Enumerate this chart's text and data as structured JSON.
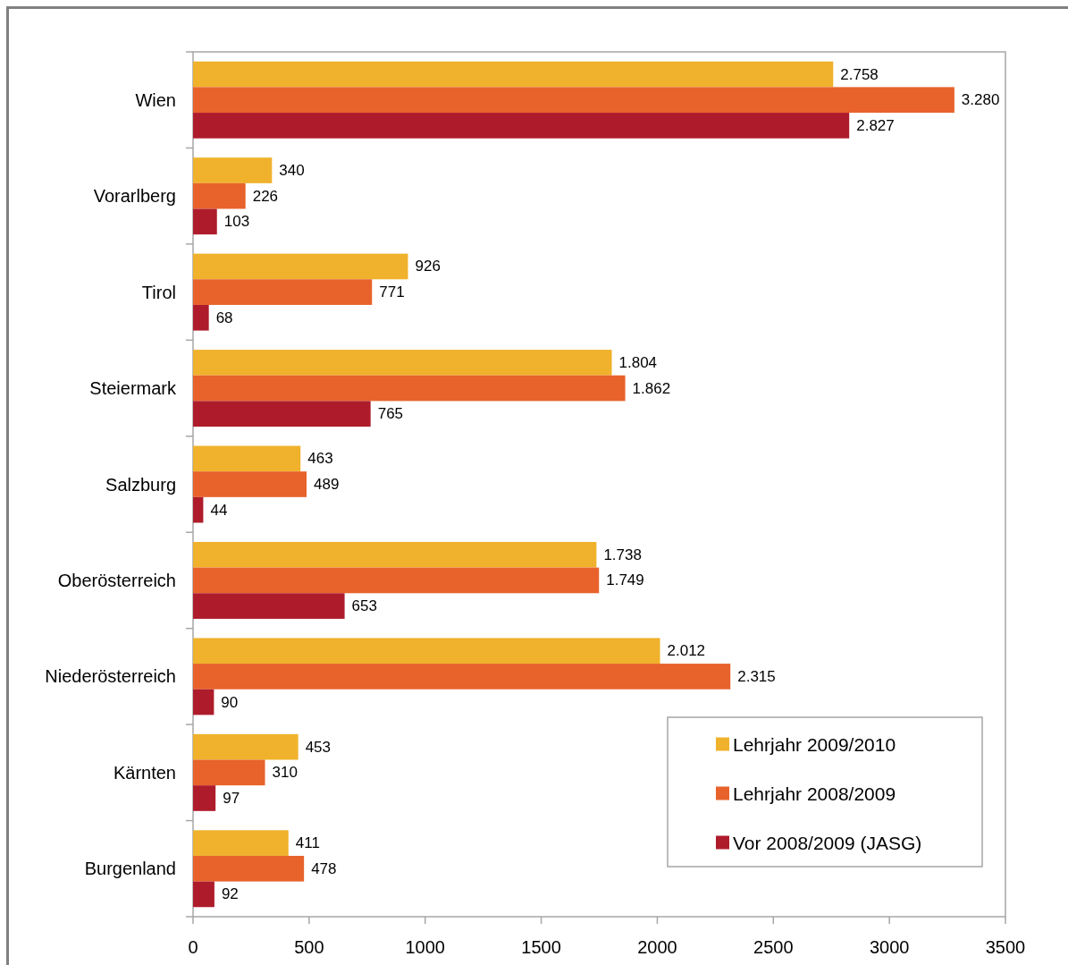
{
  "chart_data": {
    "type": "bar",
    "orientation": "horizontal",
    "categories": [
      "Wien",
      "Vorarlberg",
      "Tirol",
      "Steiermark",
      "Salzburg",
      "Oberösterreich",
      "Niederösterreich",
      "Kärnten",
      "Burgenland"
    ],
    "series": [
      {
        "name": "Lehrjahr 2009/2010",
        "color": "#f0b22c",
        "values": [
          2758,
          340,
          926,
          1804,
          463,
          1738,
          2012,
          453,
          411
        ],
        "value_labels": [
          "2.758",
          "340",
          "926",
          "1.804",
          "463",
          "1.738",
          "2.012",
          "453",
          "411"
        ]
      },
      {
        "name": "Lehrjahr 2008/2009",
        "color": "#e8622b",
        "values": [
          3280,
          226,
          771,
          1862,
          489,
          1749,
          2315,
          310,
          478
        ],
        "value_labels": [
          "3.280",
          "226",
          "771",
          "1.862",
          "489",
          "1.749",
          "2.315",
          "310",
          "478"
        ]
      },
      {
        "name": "Vor 2008/2009 (JASG)",
        "color": "#ae1c2b",
        "values": [
          2827,
          103,
          68,
          765,
          44,
          653,
          90,
          97,
          92
        ],
        "value_labels": [
          "2.827",
          "103",
          "68",
          "765",
          "44",
          "653",
          "90",
          "97",
          "92"
        ]
      }
    ],
    "xlim": [
      0,
      3500
    ],
    "xticks": [
      0,
      500,
      1000,
      1500,
      2000,
      2500,
      3000,
      3500
    ],
    "legend": "bottom right"
  }
}
